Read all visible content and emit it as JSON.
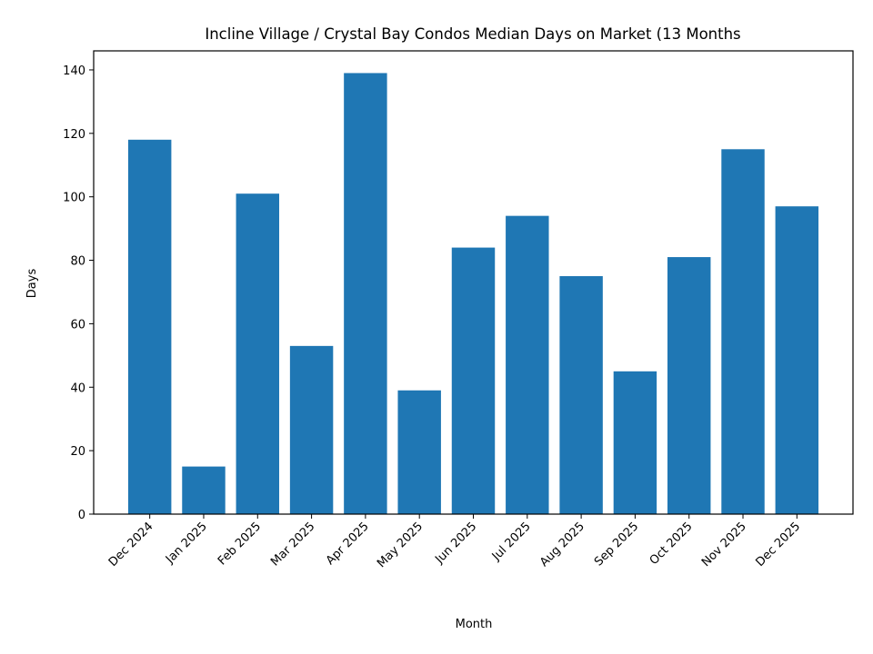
{
  "chart_data": {
    "type": "bar",
    "title": "Incline Village / Crystal Bay Condos Median Days on Market (13 Months",
    "xlabel": "Month",
    "ylabel": "Days",
    "categories": [
      "Dec 2024",
      "Jan 2025",
      "Feb 2025",
      "Mar 2025",
      "Apr 2025",
      "May 2025",
      "Jun 2025",
      "Jul 2025",
      "Aug 2025",
      "Sep 2025",
      "Oct 2025",
      "Nov 2025",
      "Dec 2025"
    ],
    "values": [
      118,
      15,
      101,
      53,
      139,
      39,
      84,
      94,
      75,
      45,
      81,
      115,
      97
    ],
    "color": "#1f77b4",
    "ylim": [
      0,
      146
    ],
    "yticks": [
      0,
      20,
      40,
      60,
      80,
      100,
      120,
      140
    ],
    "grid": false
  }
}
